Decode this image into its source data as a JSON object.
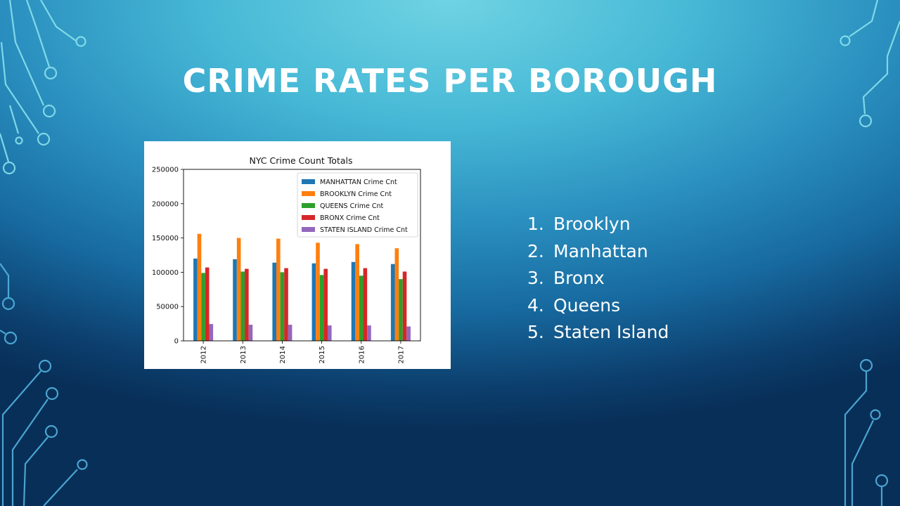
{
  "slide": {
    "title": "CRIME RATES PER BOROUGH",
    "ranking": [
      {
        "num": "1.",
        "label": "Brooklyn"
      },
      {
        "num": "2.",
        "label": "Manhattan"
      },
      {
        "num": "3.",
        "label": "Bronx"
      },
      {
        "num": "4.",
        "label": "Queens"
      },
      {
        "num": "5.",
        "label": "Staten Island"
      }
    ]
  },
  "chart_data": {
    "type": "bar",
    "title": "NYC Crime Count Totals",
    "xlabel": "",
    "ylabel": "",
    "ylim": [
      0,
      250000
    ],
    "yticks": [
      0,
      50000,
      100000,
      150000,
      200000,
      250000
    ],
    "categories": [
      "2012",
      "2013",
      "2014",
      "2015",
      "2016",
      "2017"
    ],
    "legend_position": "top-right",
    "grid": false,
    "series": [
      {
        "name": "MANHATTAN Crime Cnt",
        "color": "#1f77b4",
        "values": [
          120000,
          119000,
          114000,
          113000,
          115000,
          112000
        ]
      },
      {
        "name": "BROOKLYN Crime Cnt",
        "color": "#ff7f0e",
        "values": [
          156000,
          150000,
          149000,
          143000,
          141000,
          135000
        ]
      },
      {
        "name": "QUEENS Crime Cnt",
        "color": "#2ca02c",
        "values": [
          99000,
          101000,
          100000,
          96000,
          95000,
          90000
        ]
      },
      {
        "name": "BRONX Crime Cnt",
        "color": "#d62728",
        "values": [
          107000,
          105000,
          106000,
          105000,
          106000,
          101000
        ]
      },
      {
        "name": "STATEN ISLAND Crime Cnt",
        "color": "#9467bd",
        "values": [
          24500,
          23500,
          23500,
          22500,
          22500,
          21000
        ]
      }
    ]
  }
}
